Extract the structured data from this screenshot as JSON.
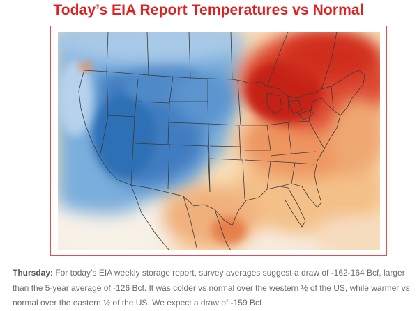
{
  "title": "Today’s EIA Report Temperatures vs Normal",
  "map": {
    "colors": {
      "cold_strong": "#2f6fb5",
      "cold": "#6fa4d6",
      "cool": "#bcd6ee",
      "neutral": "#f7f2ea",
      "warm": "#f6c88d",
      "warmer": "#ee8a55",
      "hot": "#d83a2a",
      "hottest": "#c0201a",
      "border_lines": "#333333",
      "frame": "#e05050"
    }
  },
  "caption": {
    "lead": "Thursday:",
    "body": "  For today’s EIA weekly storage report, survey averages suggest a draw of -162-164 Bcf, larger than the 5-year average of -126 Bcf. It was colder vs normal over the western ½ of the US, while warmer vs normal over the eastern ½ of the US. We expect a draw of -159 Bcf"
  }
}
